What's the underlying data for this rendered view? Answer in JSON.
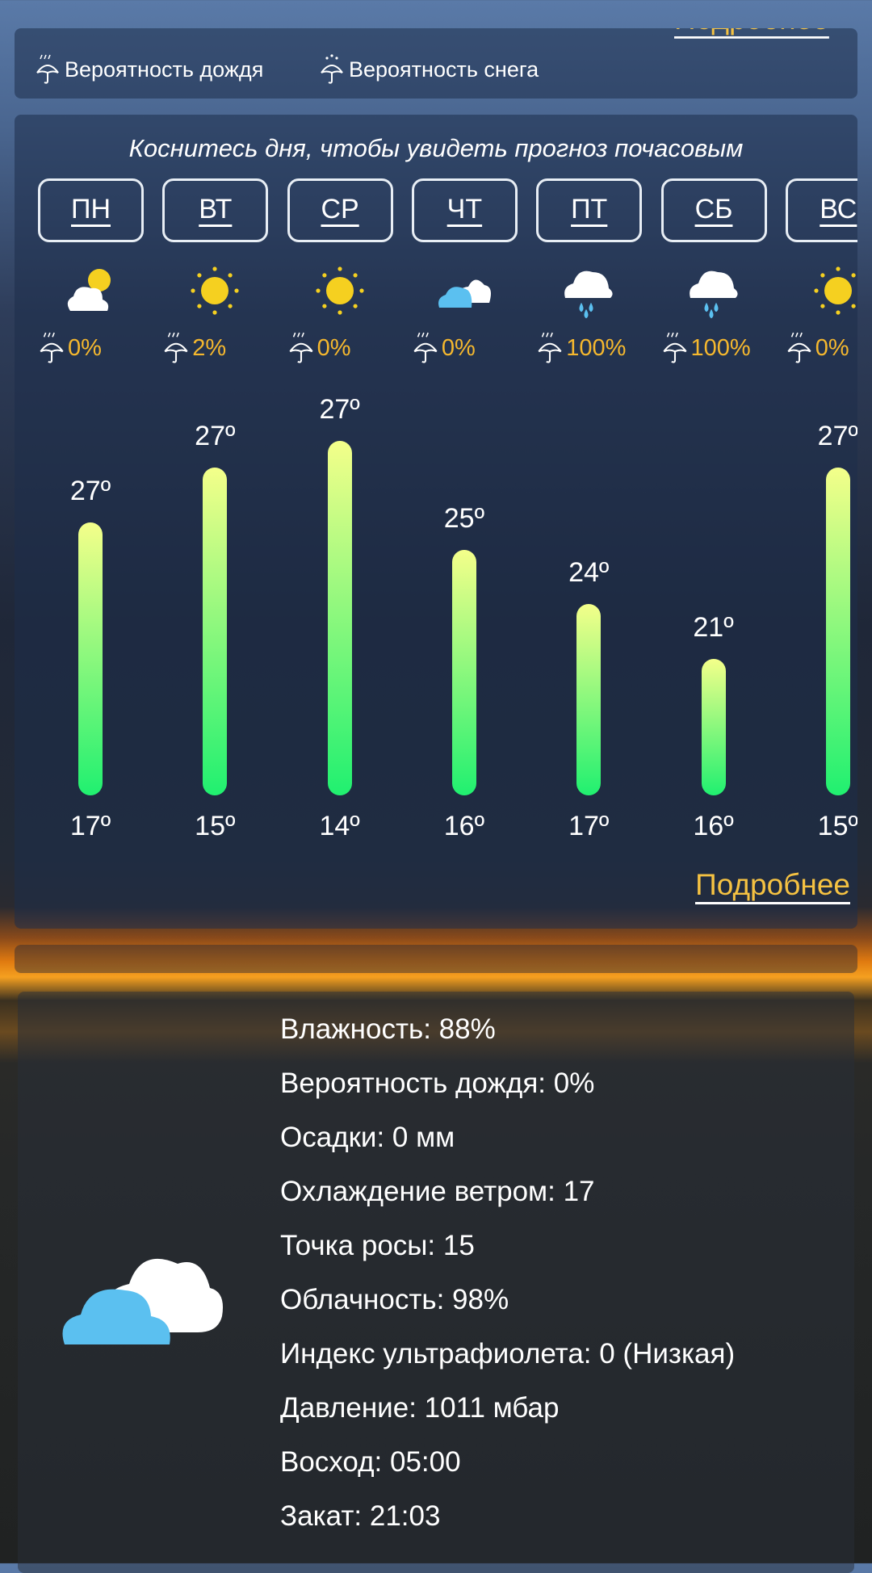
{
  "top_card": {
    "more_label": "Подробнее",
    "rain_legend": "Вероятность дождя",
    "snow_legend": "Вероятность снега"
  },
  "forecast": {
    "subtitle": "Коснитесь дня, чтобы увидеть прогноз почасовым",
    "more_label": "Подробнее",
    "days": [
      {
        "label": "ПН",
        "icon": "partly-cloudy-sun",
        "precip": "0%",
        "high": 27,
        "low": 17,
        "high_label": "27º",
        "low_label": "17º"
      },
      {
        "label": "ВТ",
        "icon": "sun",
        "precip": "2%",
        "high": 27,
        "low": 15,
        "high_label": "27º",
        "low_label": "15º"
      },
      {
        "label": "СР",
        "icon": "sun",
        "precip": "0%",
        "high": 27,
        "low": 14,
        "high_label": "27º",
        "low_label": "14º"
      },
      {
        "label": "ЧТ",
        "icon": "clouds",
        "precip": "0%",
        "high": 25,
        "low": 16,
        "high_label": "25º",
        "low_label": "16º"
      },
      {
        "label": "ПТ",
        "icon": "rain",
        "precip": "100%",
        "high": 24,
        "low": 17,
        "high_label": "24º",
        "low_label": "17º"
      },
      {
        "label": "СБ",
        "icon": "rain",
        "precip": "100%",
        "high": 21,
        "low": 16,
        "high_label": "21º",
        "low_label": "16º"
      },
      {
        "label": "ВС",
        "icon": "sun",
        "precip": "0%",
        "high": 27,
        "low": 15,
        "high_label": "27º",
        "low_label": "15º"
      }
    ]
  },
  "details": {
    "icon": "clouds",
    "rows": [
      "Влажность: 88%",
      "Вероятность дождя: 0%",
      "Осадки: 0 мм",
      "Охлаждение ветром: 17",
      "Точка росы: 15",
      "Облачность: 98%",
      "Индекс ультрафиолета: 0 (Низкая)",
      "Давление: 1011 мбар",
      "Восход: 05:00",
      "Закат: 21:03"
    ]
  },
  "colors": {
    "accent": "#f5c242",
    "bar_top": "#f4ff8a",
    "bar_bottom": "#20f070"
  }
}
